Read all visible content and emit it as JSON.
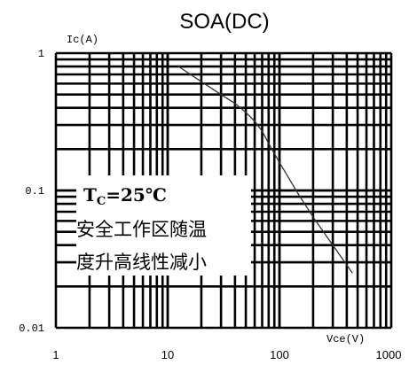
{
  "chart_data": {
    "type": "line",
    "title": "SOA(DC)",
    "xlabel": "Vce(V)",
    "ylabel": "Ic(A)",
    "xscale": "log",
    "yscale": "log",
    "xlim": [
      1,
      1000
    ],
    "ylim": [
      0.01,
      1
    ],
    "xticks": [
      "1",
      "10",
      "100",
      "1000"
    ],
    "yticks": [
      "1",
      "0.1",
      "0.01"
    ],
    "grid": true,
    "series": [
      {
        "x": [
          12.5,
          20,
          30,
          40,
          50,
          60,
          70,
          80,
          100,
          150,
          200,
          300,
          450
        ],
        "y": [
          0.8,
          0.62,
          0.5,
          0.43,
          0.37,
          0.32,
          0.27,
          0.22,
          0.16,
          0.092,
          0.064,
          0.04,
          0.025
        ]
      }
    ],
    "annotation": {
      "condition": {
        "prefix": "T",
        "sub": "C",
        "value": "=25℃"
      },
      "lines": [
        "安全工作区随温",
        "度升高线性减小"
      ]
    }
  }
}
